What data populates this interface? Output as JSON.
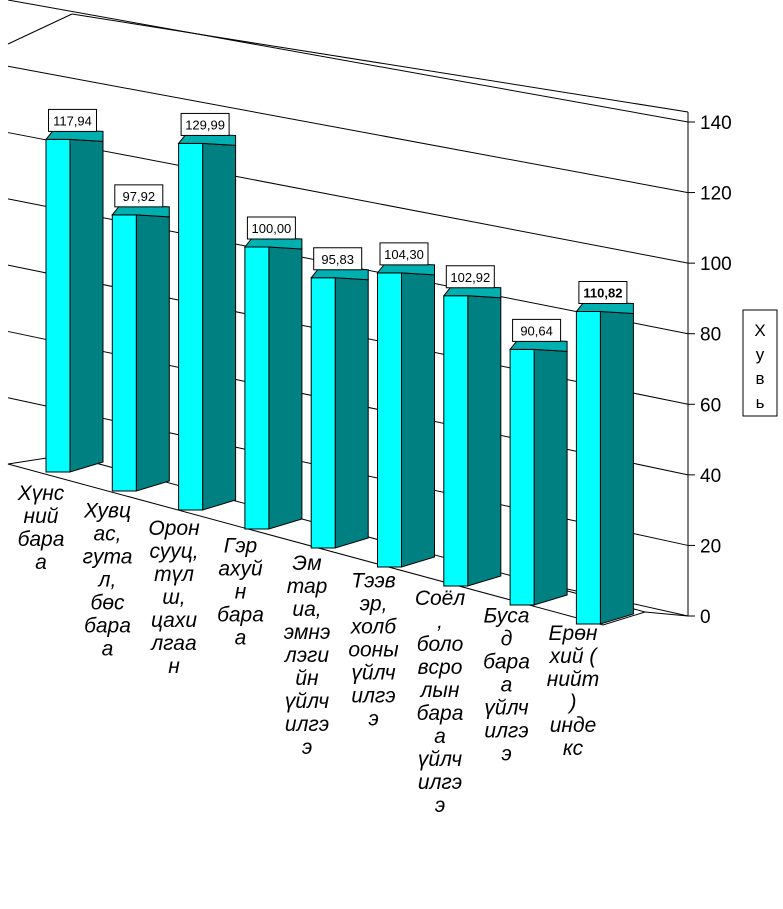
{
  "chart_data": {
    "type": "bar",
    "categories": [
      "Хүнс ний бара а",
      "Хувц ас, гута л, бөс бара а",
      "Орон сууц, түл ш, цахи лгаа н",
      "Гэр ахуй н бара а",
      "Эм тар иа, эмнэ лэги йн үйлч илгэ э",
      "Тээв эр, холб ооны үйлч илгэ э",
      "Соёл , боло вся ро лын бара а үйлч илгэ э",
      "Буса д бара а үйлч илгэ э",
      "Ерөн хий ( нийт ) инде кс"
    ],
    "category_lines": [
      [
        "Хүнс",
        "ний",
        "бара",
        "а"
      ],
      [
        "Хувц",
        "ас,",
        "гута",
        "л,",
        "бөс",
        "бара",
        "а"
      ],
      [
        "Орон",
        "сууц,",
        "түл",
        "ш,",
        "цахи",
        "лгаа",
        "н"
      ],
      [
        "Гэр",
        "ахуй",
        "н",
        "бара",
        "а"
      ],
      [
        "Эм",
        "тар",
        "иа,",
        "эмнэ",
        "лэги",
        "йн",
        "үйлч",
        "илгэ",
        "э"
      ],
      [
        "Тээв",
        "эр,",
        "холб",
        "ооны",
        "үйлч",
        "илгэ",
        "э"
      ],
      [
        "Соёл",
        ",",
        "боло",
        "вcро",
        "лын",
        "бара",
        "а",
        "үйлч",
        "илгэ",
        "э"
      ],
      [
        "Буса",
        "д",
        "бара",
        "а",
        "үйлч",
        "илгэ",
        "э"
      ],
      [
        "Ерөн",
        "хий (",
        "нийт",
        ")",
        "инде",
        "кс"
      ]
    ],
    "values": [
      117.94,
      97.92,
      129.99,
      100.0,
      95.83,
      104.3,
      102.92,
      90.64,
      110.82
    ],
    "value_labels": [
      "117,94",
      "97,92",
      "129,99",
      "100,00",
      "95,83",
      "104,30",
      "102,92",
      "90,64",
      "110,82"
    ],
    "bold_index": 8,
    "yticks": [
      "0",
      "20",
      "40",
      "60",
      "80",
      "100",
      "120",
      "140"
    ],
    "ylim": [
      0,
      140
    ],
    "ylabel": "Хувь",
    "ylabel_chars": [
      "Х",
      "у",
      "в",
      "ь"
    ],
    "gridlines": true,
    "colors": {
      "front": "#00ffff",
      "side": "#008080",
      "top": "#00b0b0",
      "outline": "#000000",
      "grid": "#000000"
    }
  }
}
